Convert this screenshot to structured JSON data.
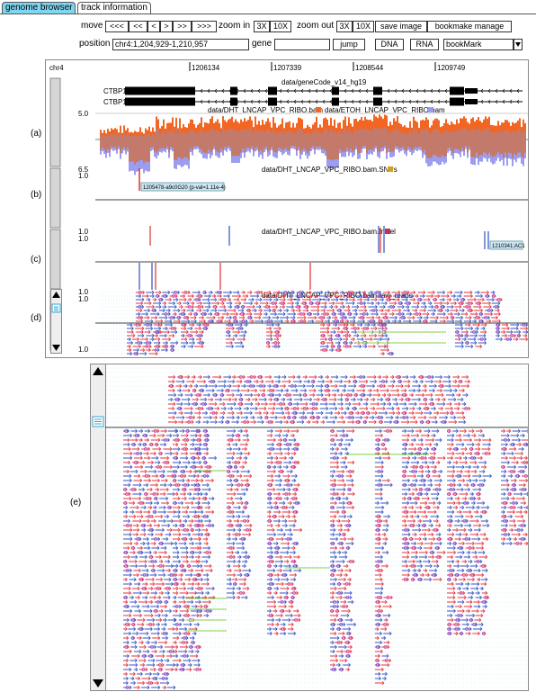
{
  "tabs": [
    {
      "label": "genome browser",
      "active": true
    },
    {
      "label": "track information",
      "active": false
    }
  ],
  "toolbar": {
    "move_label": "move",
    "move_buttons": [
      "<<<",
      "<<",
      "<",
      ">",
      ">>",
      ">>>"
    ],
    "zoom_in_label": "zoom in",
    "zoom_in_buttons": [
      "3X",
      "10X"
    ],
    "zoom_out_label": "zoom out",
    "zoom_out_buttons": [
      "3X",
      "10X"
    ],
    "save_image": "save image",
    "bookmark_manage": "bookmake manage",
    "position_label": "position",
    "position_value": "chr4:1,204,929-1,210,957",
    "gene_label": "gene",
    "gene_value": "",
    "jump": "jump",
    "dna": "DNA",
    "rna": "RNA",
    "bookmark_select": "bookMark"
  },
  "browser": {
    "chrom": "chr4",
    "ruler_ticks": [
      "1206134",
      "1207339",
      "1208544",
      "1209749"
    ],
    "gene_track": {
      "title": "data/geneCode_v14_hg19",
      "genes": [
        "CTBP1",
        "CTBP1"
      ]
    },
    "coverage_track": {
      "title_a": "data/DHT_LNCAP_VPC_RIBO.bam",
      "title_b": "data/ETOH_LNCAP_VPC_RIBO.bam",
      "ymax": "5.0",
      "ymin": "6.5",
      "color_a": "#f26522",
      "color_b": "#9c9cf0",
      "color_overlap": "#c47a6a"
    },
    "snp_track": {
      "title": "data/DHT_LNCAP_VPC_RIBO.bam.SNPs",
      "ymax": "1.0",
      "tooltip": "1205478-a9c0G20 (p-val=1.11e-4)"
    },
    "indel_track": {
      "title": "data/DHT_LNCAP_VPC_RIBO.bam.InDel",
      "ymax1": "1.0",
      "ymax2": "1.0",
      "tooltip": "1210341;AC1"
    },
    "reads_track": {
      "title": "data/DHT_LNCAP_VPC_RIBO.bam.raw_reads",
      "ymax1": "1.0",
      "ymax2": "1.0",
      "ymin": "1.0"
    },
    "panel_labels": [
      "(a)",
      "(b)",
      "(c)",
      "(d)",
      "(e)"
    ]
  },
  "icons": {
    "scroll_up": "triangle-up-icon",
    "scroll_down": "triangle-down-icon",
    "grip": "grip-lines-icon",
    "dropdown": "triangle-down-small-icon"
  }
}
